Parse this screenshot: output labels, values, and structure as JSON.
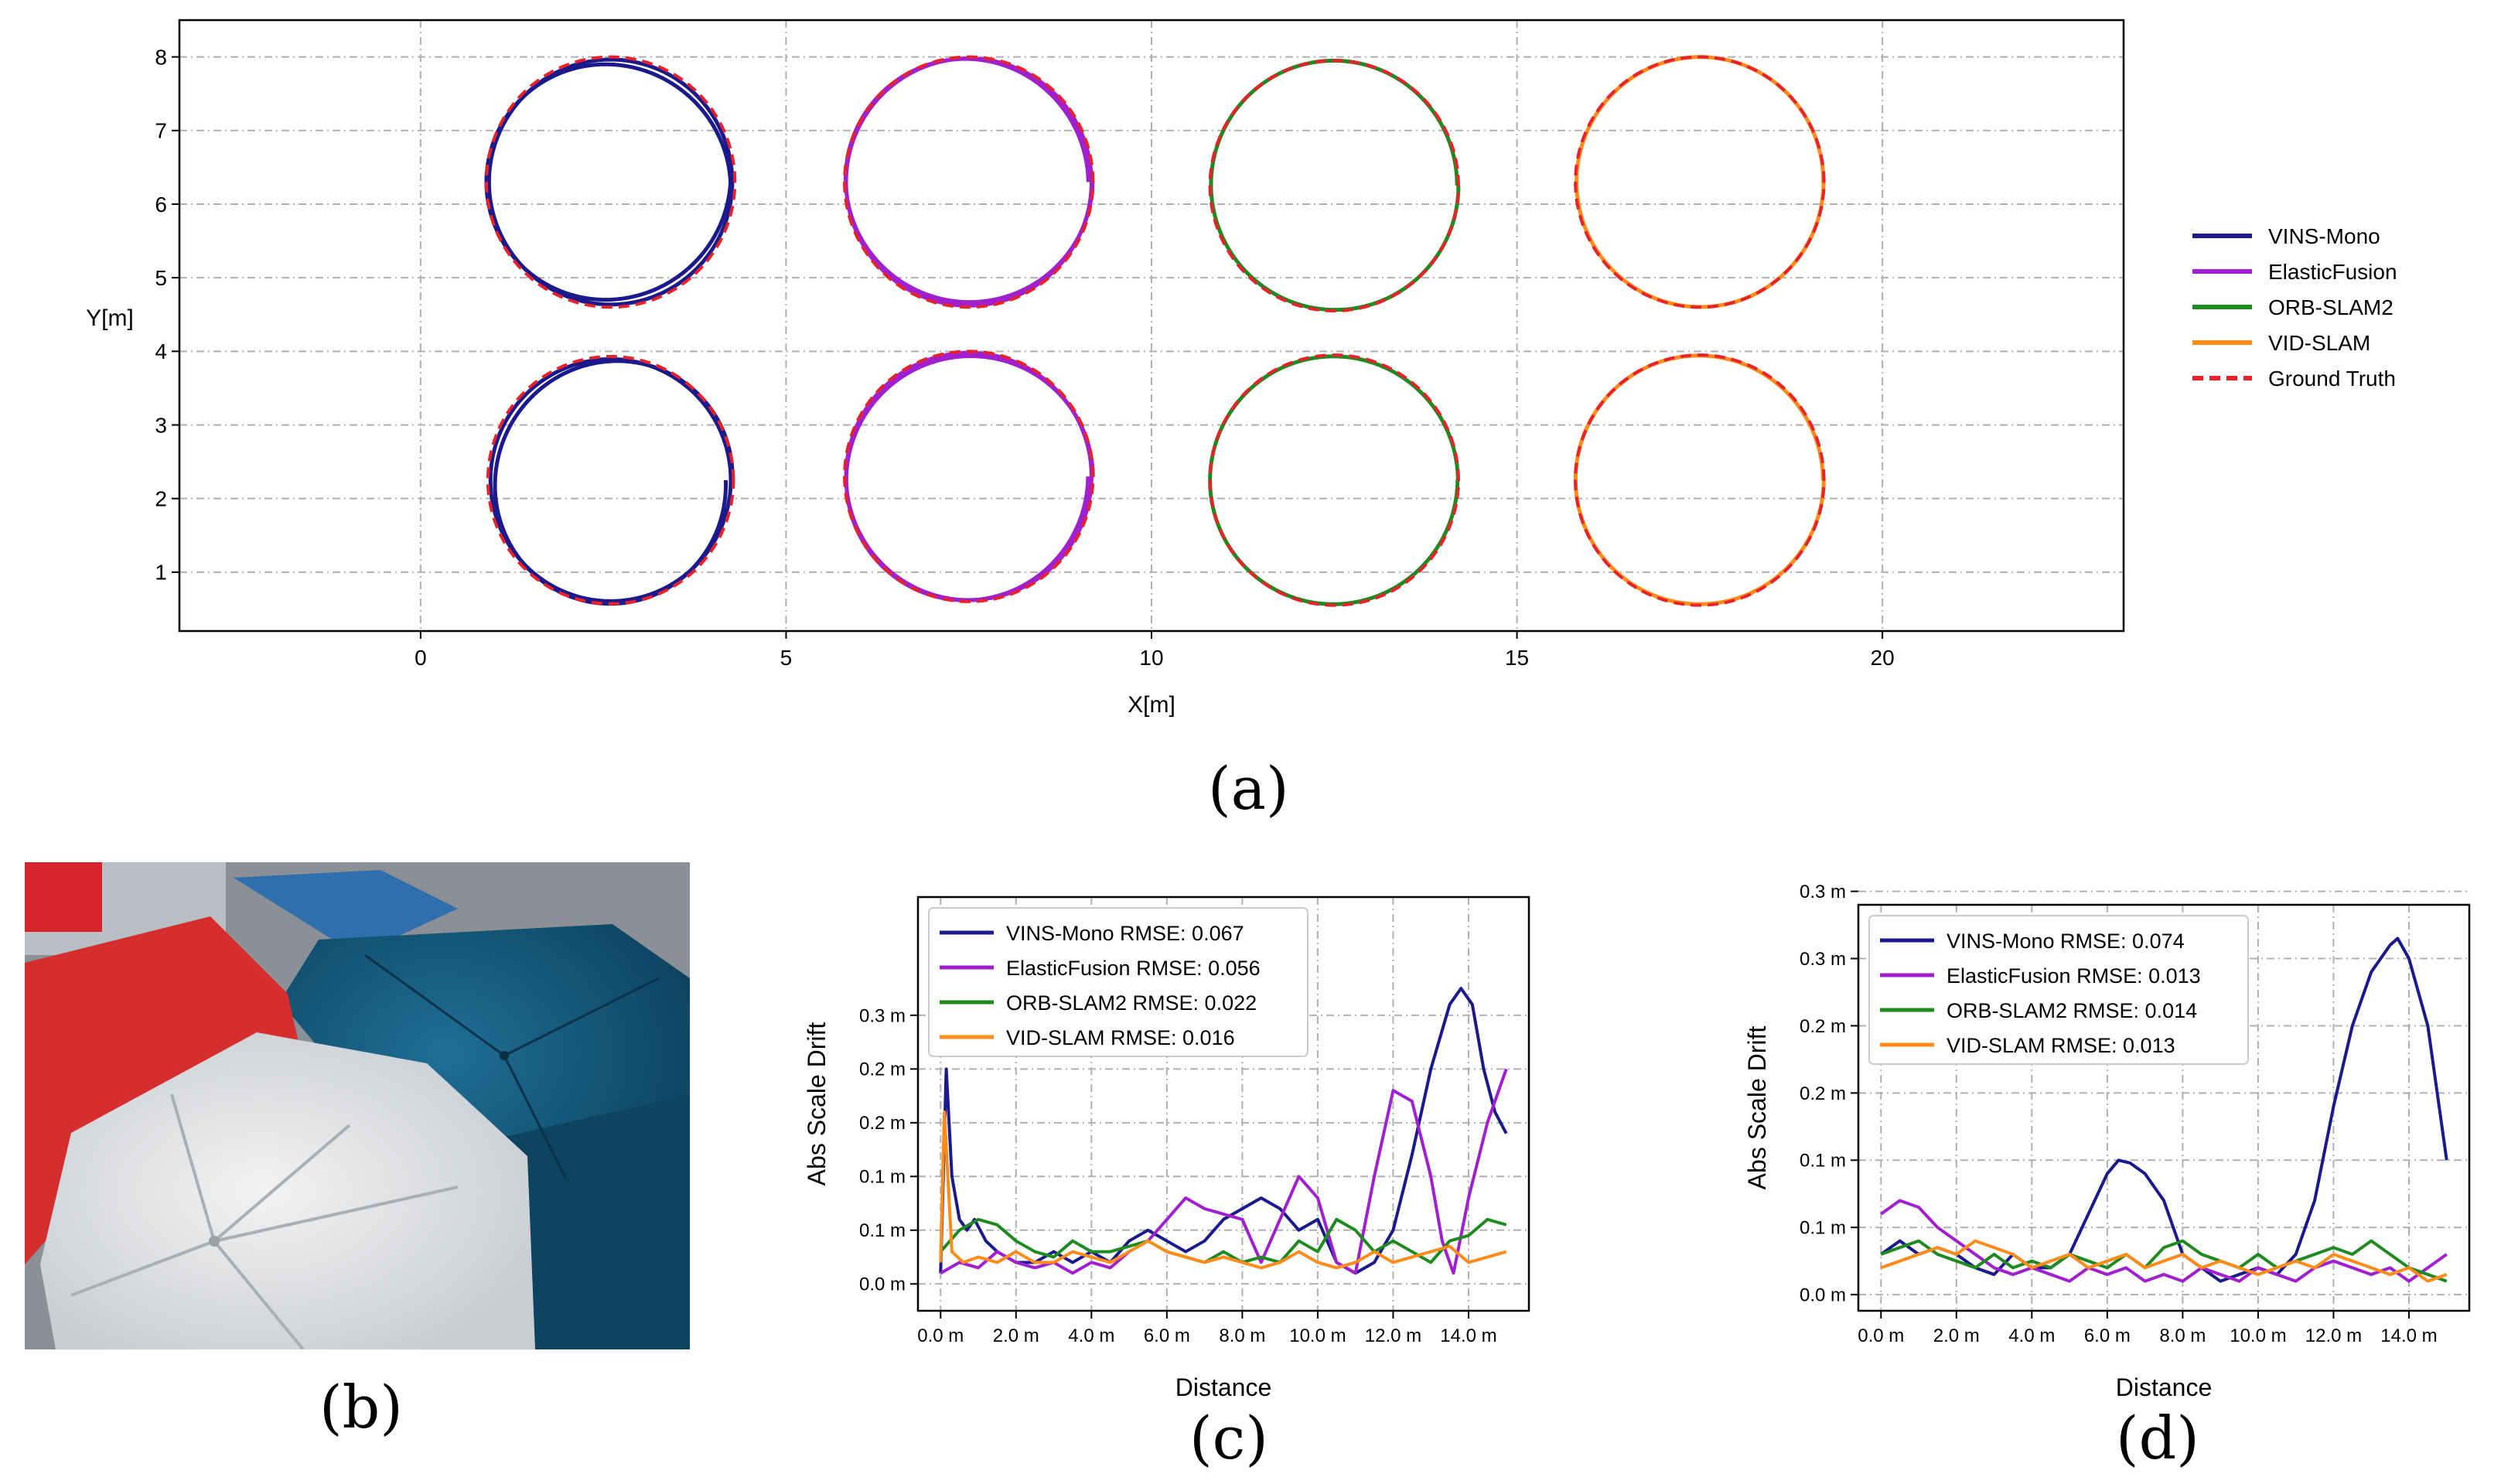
{
  "captions": {
    "a": "(a)",
    "b": "(b)",
    "c": "(c)",
    "d": "(d)"
  },
  "colors": {
    "vins_mono": "#1a1a8c",
    "elastic_fusion": "#a020d0",
    "orb_slam2": "#1f8a1f",
    "vid_slam": "#ff8c1a",
    "ground_truth": "#e8222a"
  },
  "chart_data": [
    {
      "id": "a",
      "type": "line",
      "title": "",
      "xlabel": "X[m]",
      "ylabel": "Y[m]",
      "xlim": [
        -3.3,
        23.3
      ],
      "ylim": [
        0.2,
        8.5
      ],
      "xticks": [
        "0",
        "5",
        "10",
        "15",
        "20"
      ],
      "xtick_values": [
        0,
        5,
        10,
        15,
        20
      ],
      "yticks": [
        "1",
        "2",
        "3",
        "4",
        "5",
        "6",
        "7",
        "8"
      ],
      "ytick_values": [
        1,
        2,
        3,
        4,
        5,
        6,
        7,
        8
      ],
      "grid": true,
      "legend": [
        "VINS-Mono",
        "ElasticFusion",
        "ORB-SLAM2",
        "VID-SLAM",
        "Ground Truth"
      ],
      "legend_location": "outside-right",
      "circles": [
        {
          "cx": 2.6,
          "cy": 6.3,
          "r": 1.7,
          "series": "VINS-Mono"
        },
        {
          "cx": 7.5,
          "cy": 6.3,
          "r": 1.7,
          "series": "ElasticFusion"
        },
        {
          "cx": 12.5,
          "cy": 6.25,
          "r": 1.7,
          "series": "ORB-SLAM2"
        },
        {
          "cx": 17.5,
          "cy": 6.3,
          "r": 1.7,
          "series": "VID-SLAM"
        },
        {
          "cx": 2.6,
          "cy": 2.25,
          "r": 1.68,
          "series": "VINS-Mono"
        },
        {
          "cx": 7.5,
          "cy": 2.3,
          "r": 1.7,
          "series": "ElasticFusion"
        },
        {
          "cx": 12.5,
          "cy": 2.25,
          "r": 1.7,
          "series": "ORB-SLAM2"
        },
        {
          "cx": 17.5,
          "cy": 2.25,
          "r": 1.7,
          "series": "VID-SLAM"
        }
      ]
    },
    {
      "id": "c",
      "type": "line",
      "xlabel": "Distance",
      "ylabel": "Abs Scale Drift",
      "xlim": [
        -0.6,
        15.6
      ],
      "ylim": [
        -0.025,
        0.36
      ],
      "xticks": [
        "0.0 m",
        "2.0 m",
        "4.0 m",
        "6.0 m",
        "8.0 m",
        "10.0 m",
        "12.0 m",
        "14.0 m"
      ],
      "xtick_values": [
        0,
        2,
        4,
        6,
        8,
        10,
        12,
        14
      ],
      "yticks": [
        "0.0 m",
        "0.1 m",
        "0.1 m",
        "0.2 m",
        "0.2 m",
        "0.3 m"
      ],
      "ytick_values": [
        0,
        0.05,
        0.1,
        0.15,
        0.2,
        0.25
      ],
      "grid": true,
      "legend_location": "upper-left",
      "series": [
        {
          "name": "VINS-Mono",
          "label": "VINS-Mono RMSE: 0.067",
          "x": [
            0,
            0.15,
            0.3,
            0.5,
            0.7,
            0.9,
            1.2,
            1.5,
            2,
            2.5,
            3,
            3.5,
            4,
            4.5,
            5,
            5.5,
            6,
            6.5,
            7,
            7.5,
            8,
            8.5,
            9,
            9.5,
            10,
            10.5,
            11,
            11.5,
            12,
            12.5,
            13,
            13.5,
            13.8,
            14.1,
            14.4,
            14.7,
            15
          ],
          "values": [
            0.01,
            0.2,
            0.1,
            0.06,
            0.05,
            0.06,
            0.04,
            0.03,
            0.02,
            0.02,
            0.03,
            0.02,
            0.03,
            0.02,
            0.04,
            0.05,
            0.04,
            0.03,
            0.04,
            0.06,
            0.07,
            0.08,
            0.07,
            0.05,
            0.06,
            0.02,
            0.01,
            0.02,
            0.05,
            0.12,
            0.2,
            0.26,
            0.275,
            0.26,
            0.2,
            0.16,
            0.14
          ]
        },
        {
          "name": "ElasticFusion",
          "label": "ElasticFusion RMSE: 0.056",
          "x": [
            0,
            0.5,
            1,
            1.5,
            2,
            2.5,
            3,
            3.5,
            4,
            4.5,
            5,
            5.5,
            6,
            6.5,
            7,
            7.5,
            8,
            8.5,
            9,
            9.5,
            10,
            10.5,
            11,
            11.5,
            12,
            12.5,
            13,
            13.3,
            13.6,
            14,
            14.5,
            15
          ],
          "values": [
            0.01,
            0.02,
            0.015,
            0.03,
            0.02,
            0.015,
            0.02,
            0.01,
            0.02,
            0.015,
            0.03,
            0.04,
            0.06,
            0.08,
            0.07,
            0.065,
            0.06,
            0.02,
            0.06,
            0.1,
            0.08,
            0.02,
            0.01,
            0.1,
            0.18,
            0.17,
            0.1,
            0.04,
            0.01,
            0.08,
            0.15,
            0.2
          ]
        },
        {
          "name": "ORB-SLAM2",
          "label": "ORB-SLAM2 RMSE: 0.022",
          "x": [
            0,
            0.5,
            1,
            1.5,
            2,
            2.5,
            3,
            3.5,
            4,
            4.5,
            5,
            5.5,
            6,
            6.5,
            7,
            7.5,
            8,
            8.5,
            9,
            9.5,
            10,
            10.5,
            11,
            11.5,
            12,
            12.5,
            13,
            13.5,
            14,
            14.5,
            15
          ],
          "values": [
            0.03,
            0.05,
            0.06,
            0.055,
            0.04,
            0.03,
            0.025,
            0.04,
            0.03,
            0.03,
            0.035,
            0.04,
            0.03,
            0.025,
            0.02,
            0.03,
            0.02,
            0.025,
            0.02,
            0.04,
            0.03,
            0.06,
            0.05,
            0.03,
            0.04,
            0.03,
            0.02,
            0.04,
            0.045,
            0.06,
            0.055
          ]
        },
        {
          "name": "VID-SLAM",
          "label": "VID-SLAM RMSE: 0.016",
          "x": [
            0,
            0.1,
            0.3,
            0.6,
            1,
            1.5,
            2,
            2.5,
            3,
            3.5,
            4,
            4.5,
            5,
            5.5,
            6,
            6.5,
            7,
            7.5,
            8,
            8.5,
            9,
            9.5,
            10,
            10.5,
            11,
            11.5,
            12,
            12.5,
            13,
            13.5,
            14,
            14.5,
            15
          ],
          "values": [
            0.02,
            0.16,
            0.03,
            0.02,
            0.025,
            0.02,
            0.03,
            0.02,
            0.02,
            0.03,
            0.025,
            0.02,
            0.03,
            0.04,
            0.03,
            0.025,
            0.02,
            0.025,
            0.02,
            0.015,
            0.02,
            0.03,
            0.02,
            0.015,
            0.02,
            0.03,
            0.02,
            0.025,
            0.03,
            0.035,
            0.02,
            0.025,
            0.03
          ]
        }
      ]
    },
    {
      "id": "d",
      "type": "line",
      "xlabel": "Distance",
      "ylabel": "Abs Scale Drift",
      "xlim": [
        -0.6,
        15.6
      ],
      "ylim": [
        -0.012,
        0.29
      ],
      "xticks": [
        "0.0 m",
        "2.0 m",
        "4.0 m",
        "6.0 m",
        "8.0 m",
        "10.0 m",
        "12.0 m",
        "14.0 m"
      ],
      "xtick_values": [
        0,
        2,
        4,
        6,
        8,
        10,
        12,
        14
      ],
      "yticks": [
        "0.0 m",
        "0.1 m",
        "0.1 m",
        "0.2 m",
        "0.2 m",
        "0.3 m",
        "0.3 m"
      ],
      "ytick_values": [
        0,
        0.05,
        0.1,
        0.15,
        0.2,
        0.25,
        0.3
      ],
      "grid": true,
      "legend_location": "upper-left",
      "series": [
        {
          "name": "VINS-Mono",
          "label": "VINS-Mono RMSE: 0.074",
          "x": [
            0,
            0.5,
            1,
            1.5,
            2,
            2.5,
            3,
            3.5,
            4,
            4.5,
            5,
            5.5,
            6,
            6.3,
            6.6,
            7,
            7.5,
            8,
            8.5,
            9,
            9.5,
            10,
            10.5,
            11,
            11.5,
            12,
            12.5,
            13,
            13.5,
            13.7,
            14,
            14.5,
            15
          ],
          "values": [
            0.03,
            0.04,
            0.03,
            0.035,
            0.03,
            0.02,
            0.015,
            0.03,
            0.02,
            0.02,
            0.03,
            0.06,
            0.09,
            0.1,
            0.098,
            0.09,
            0.07,
            0.03,
            0.02,
            0.01,
            0.015,
            0.02,
            0.015,
            0.03,
            0.07,
            0.14,
            0.2,
            0.24,
            0.26,
            0.265,
            0.25,
            0.2,
            0.1
          ]
        },
        {
          "name": "ElasticFusion",
          "label": "ElasticFusion RMSE: 0.013",
          "x": [
            0,
            0.5,
            1,
            1.5,
            2,
            2.5,
            3,
            3.5,
            4,
            4.5,
            5,
            5.5,
            6,
            6.5,
            7,
            7.5,
            8,
            8.5,
            9,
            9.5,
            10,
            10.5,
            11,
            11.5,
            12,
            12.5,
            13,
            13.5,
            14,
            14.5,
            15
          ],
          "values": [
            0.06,
            0.07,
            0.065,
            0.05,
            0.04,
            0.03,
            0.02,
            0.015,
            0.02,
            0.015,
            0.01,
            0.02,
            0.015,
            0.02,
            0.01,
            0.015,
            0.01,
            0.02,
            0.015,
            0.01,
            0.02,
            0.015,
            0.01,
            0.02,
            0.025,
            0.02,
            0.015,
            0.02,
            0.01,
            0.02,
            0.03
          ]
        },
        {
          "name": "ORB-SLAM2",
          "label": "ORB-SLAM2 RMSE: 0.014",
          "x": [
            0,
            0.5,
            1,
            1.5,
            2,
            2.5,
            3,
            3.5,
            4,
            4.5,
            5,
            5.5,
            6,
            6.5,
            7,
            7.5,
            8,
            8.5,
            9,
            9.5,
            10,
            10.5,
            11,
            11.5,
            12,
            12.5,
            13,
            13.5,
            14,
            14.5,
            15
          ],
          "values": [
            0.03,
            0.035,
            0.04,
            0.03,
            0.025,
            0.02,
            0.03,
            0.02,
            0.025,
            0.02,
            0.03,
            0.025,
            0.02,
            0.03,
            0.02,
            0.035,
            0.04,
            0.03,
            0.025,
            0.02,
            0.03,
            0.02,
            0.025,
            0.03,
            0.035,
            0.03,
            0.04,
            0.03,
            0.02,
            0.015,
            0.01
          ]
        },
        {
          "name": "VID-SLAM",
          "label": "VID-SLAM RMSE: 0.013",
          "x": [
            0,
            0.5,
            1,
            1.5,
            2,
            2.5,
            3,
            3.5,
            4,
            4.5,
            5,
            5.5,
            6,
            6.5,
            7,
            7.5,
            8,
            8.5,
            9,
            9.5,
            10,
            10.5,
            11,
            11.5,
            12,
            12.5,
            13,
            13.5,
            14,
            14.5,
            15
          ],
          "values": [
            0.02,
            0.025,
            0.03,
            0.035,
            0.03,
            0.04,
            0.035,
            0.03,
            0.02,
            0.025,
            0.03,
            0.02,
            0.025,
            0.03,
            0.02,
            0.025,
            0.03,
            0.02,
            0.025,
            0.02,
            0.015,
            0.02,
            0.025,
            0.02,
            0.03,
            0.025,
            0.02,
            0.015,
            0.02,
            0.01,
            0.015
          ]
        }
      ]
    }
  ]
}
